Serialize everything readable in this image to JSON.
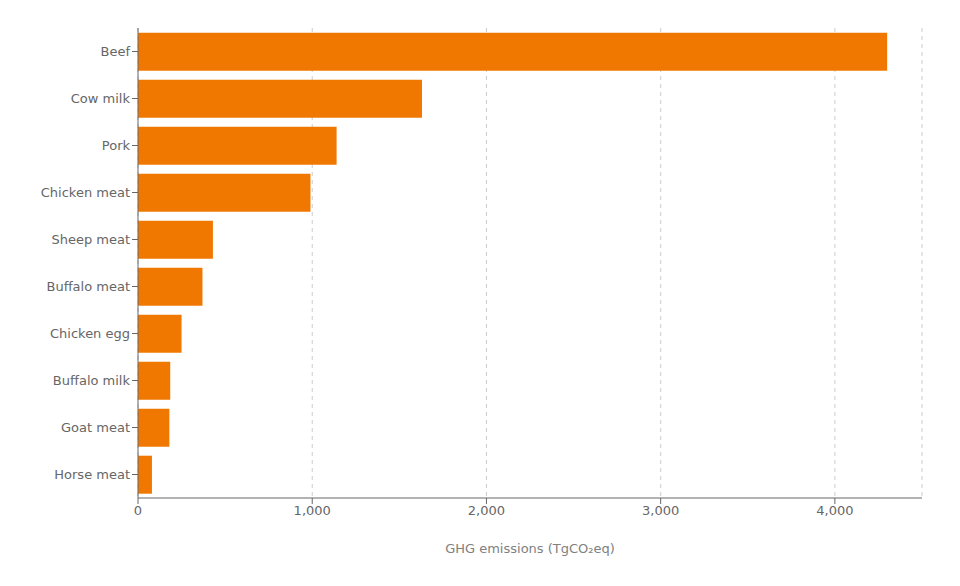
{
  "chart_data": {
    "type": "bar",
    "orientation": "horizontal",
    "categories": [
      "Horse meat",
      "Goat meat",
      "Buffalo milk",
      "Chicken egg",
      "Buffalo meat",
      "Sheep meat",
      "Chicken meat",
      "Pork",
      "Cow milk",
      "Beef"
    ],
    "values": [
      80,
      180,
      185,
      250,
      370,
      430,
      990,
      1140,
      1630,
      4300
    ],
    "color": "#F07800",
    "xlabel": "GHG emissions (TgCO₂eq)",
    "xlim": [
      0,
      4500
    ],
    "xticks": [
      0,
      {
        "value": 1000,
        "label": "1,000"
      },
      {
        "value": 2000,
        "label": "2,000"
      },
      {
        "value": 3000,
        "label": "3,000"
      },
      {
        "value": 4000,
        "label": "4,000"
      }
    ],
    "grid": true
  }
}
